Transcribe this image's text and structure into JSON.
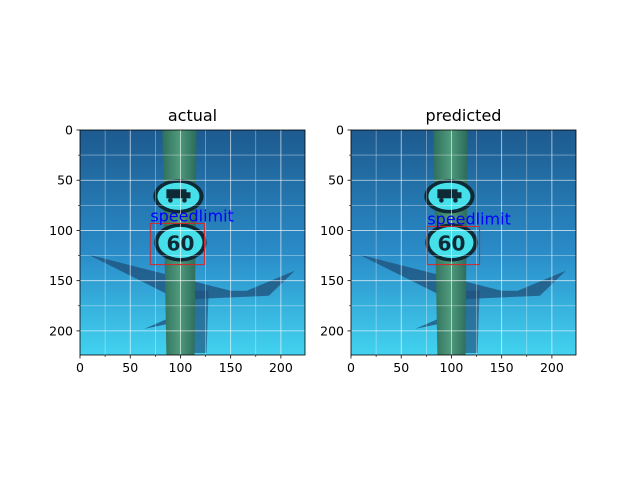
{
  "panels": [
    {
      "title": "actual",
      "box": {
        "x1": 70,
        "y1": 93,
        "x2": 124,
        "y2": 134
      },
      "box_label": "speedlimit",
      "x_ticks": [
        "0",
        "50",
        "100",
        "150",
        "200"
      ],
      "y_ticks": [
        "0",
        "50",
        "100",
        "150",
        "200"
      ]
    },
    {
      "title": "predicted",
      "box": {
        "x1": 76,
        "y1": 96,
        "x2": 128,
        "y2": 134
      },
      "box_label": "speedlimit",
      "x_ticks": [
        "0",
        "50",
        "100",
        "150",
        "200"
      ],
      "y_ticks": [
        "0",
        "50",
        "100",
        "150",
        "200"
      ]
    }
  ],
  "sign_text": "60",
  "image_extent": [
    0,
    224
  ],
  "colors": {
    "sky_top": "#1f5f95",
    "sky_bottom": "#3fcdee",
    "box": "#d62728",
    "label": "#0000ff",
    "grid": "#ffffff"
  }
}
